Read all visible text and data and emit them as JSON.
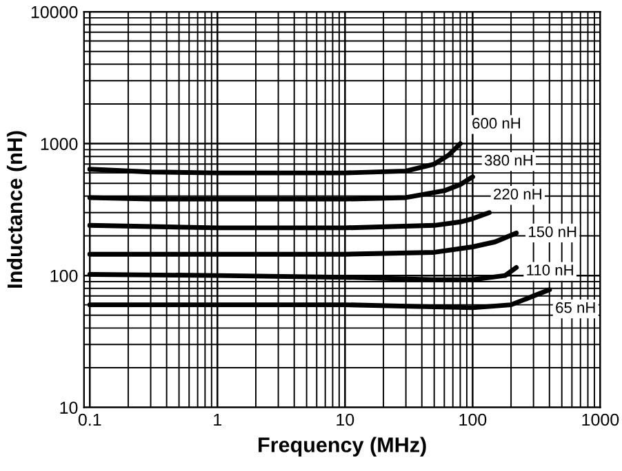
{
  "chart_data": {
    "type": "line",
    "xlabel": "Frequency (MHz)",
    "ylabel": "Inductance (nH)",
    "log": "xy",
    "grid": true,
    "legend": false,
    "marker": "none",
    "line_style": "solid",
    "xlim": [
      0.09,
      1000
    ],
    "ylim": [
      10,
      10000
    ],
    "xticks": [
      0.1,
      1,
      10,
      100,
      1000
    ],
    "yticks": [
      10,
      100,
      1000,
      10000
    ],
    "series": [
      {
        "name": "600 nH",
        "color": "#000000",
        "x": [
          0.1,
          0.3,
          1,
          3,
          10,
          30,
          50,
          65,
          80
        ],
        "values": [
          640,
          610,
          600,
          600,
          600,
          620,
          700,
          820,
          1000
        ]
      },
      {
        "name": "380 nH",
        "color": "#000000",
        "x": [
          0.1,
          0.3,
          1,
          3,
          10,
          30,
          60,
          80,
          100
        ],
        "values": [
          390,
          380,
          380,
          380,
          380,
          390,
          440,
          490,
          560
        ]
      },
      {
        "name": "220 nH",
        "color": "#000000",
        "x": [
          0.1,
          0.3,
          1,
          3,
          10,
          50,
          80,
          100,
          135
        ],
        "values": [
          240,
          235,
          230,
          230,
          230,
          240,
          255,
          270,
          300
        ]
      },
      {
        "name": "150 nH",
        "color": "#000000",
        "x": [
          0.1,
          1,
          10,
          50,
          100,
          150,
          220
        ],
        "values": [
          145,
          145,
          145,
          150,
          165,
          180,
          210
        ]
      },
      {
        "name": "110 nH",
        "color": "#000000",
        "x": [
          0.1,
          1,
          10,
          50,
          100,
          180,
          220
        ],
        "values": [
          102,
          100,
          97,
          93,
          93,
          100,
          115
        ]
      },
      {
        "name": "65 nH",
        "color": "#000000",
        "x": [
          0.1,
          1,
          10,
          100,
          200,
          300,
          400
        ],
        "values": [
          60,
          60,
          60,
          57,
          60,
          70,
          78
        ]
      }
    ]
  }
}
